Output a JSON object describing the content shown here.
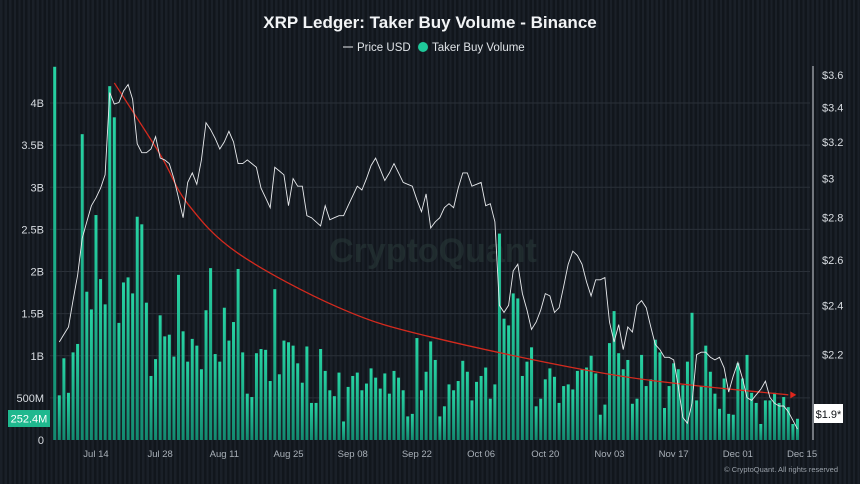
{
  "title": "XRP Ledger: Taker Buy Volume - Binance",
  "legend": [
    {
      "label": "Price USD",
      "marker": "line",
      "color": "#e8eaed"
    },
    {
      "label": "Taker Buy Volume",
      "marker": "dot",
      "color": "#1fc99a"
    }
  ],
  "watermark": "CryptoQuant",
  "copyright": "© CryptoQuant. All rights reserved",
  "colors": {
    "volume": "#1fc99a",
    "price": "#e8eaed",
    "trend": "#d42a1e",
    "background": "#141a21"
  },
  "chart_data": {
    "type": "bar",
    "title": "XRP Ledger: Taker Buy Volume - Binance",
    "grid": true,
    "legend_position": "top-center",
    "x_ticks": [
      "Jul 14",
      "Jul 28",
      "Aug 11",
      "Aug 25",
      "Sep 08",
      "Sep 22",
      "Oct 06",
      "Oct 20",
      "Nov 03",
      "Nov 17",
      "Dec 01",
      "Dec 15"
    ],
    "y_left": {
      "ticks": [
        "0",
        "500M",
        "1B",
        "1.5B",
        "2B",
        "2.5B",
        "3B",
        "3.5B",
        "4B"
      ],
      "tick_values": [
        0,
        0.5,
        1,
        1.5,
        2,
        2.5,
        3,
        3.5,
        4
      ],
      "unit": "billions",
      "range": [
        0,
        4.5
      ]
    },
    "y_right": {
      "ticks": [
        "$2.2",
        "$2.4",
        "$2.6",
        "$2.8",
        "$3",
        "$3.2",
        "$3.4",
        "$3.6"
      ],
      "tick_values": [
        2.2,
        2.4,
        2.6,
        2.8,
        3,
        3.2,
        3.4,
        3.6
      ],
      "scale": "log"
    },
    "last_volume_label": "252.4M",
    "last_price_label": "$1.9*",
    "series": [
      {
        "name": "Taker Buy Volume",
        "type": "bar",
        "unit": "billions",
        "values": [
          4.43,
          0.53,
          0.97,
          0.56,
          1.04,
          1.14,
          3.63,
          1.76,
          1.55,
          2.67,
          1.91,
          1.61,
          4.2,
          3.83,
          1.39,
          1.87,
          1.93,
          1.74,
          2.65,
          2.56,
          1.63,
          0.76,
          0.96,
          1.48,
          1.23,
          1.25,
          0.99,
          1.96,
          1.29,
          0.93,
          1.2,
          1.12,
          0.84,
          1.54,
          2.04,
          1.02,
          0.93,
          1.57,
          1.18,
          1.4,
          2.03,
          1.04,
          0.55,
          0.51,
          1.03,
          1.08,
          1.07,
          0.7,
          1.79,
          0.78,
          1.18,
          1.16,
          1.12,
          0.91,
          0.68,
          1.11,
          0.44,
          0.44,
          1.08,
          0.82,
          0.59,
          0.52,
          0.8,
          0.22,
          0.63,
          0.76,
          0.8,
          0.59,
          0.67,
          0.85,
          0.74,
          0.61,
          0.79,
          0.55,
          0.82,
          0.74,
          0.59,
          0.28,
          0.31,
          1.21,
          0.59,
          0.81,
          1.17,
          0.95,
          0.28,
          0.4,
          0.66,
          0.59,
          0.7,
          0.94,
          0.81,
          0.47,
          0.69,
          0.76,
          0.86,
          0.49,
          0.66,
          2.45,
          1.44,
          1.36,
          1.74,
          1.68,
          0.76,
          0.93,
          1.1,
          0.4,
          0.49,
          0.72,
          0.85,
          0.75,
          0.44,
          0.64,
          0.66,
          0.6,
          0.82,
          0.84,
          0.86,
          1.0,
          0.79,
          0.3,
          0.42,
          1.15,
          1.53,
          1.03,
          0.84,
          0.95,
          0.43,
          0.49,
          1.01,
          0.64,
          0.72,
          1.19,
          1.04,
          0.38,
          0.64,
          0.91,
          0.84,
          0.65,
          0.93,
          1.51,
          0.47,
          0.64,
          1.12,
          0.81,
          0.55,
          0.37,
          0.73,
          0.31,
          0.3,
          0.91,
          0.73,
          1.01,
          0.56,
          0.44,
          0.19,
          0.47,
          0.47,
          0.56,
          0.44,
          0.51,
          0.39,
          0.19,
          0.252
        ]
      },
      {
        "name": "Price USD",
        "type": "line",
        "unit": "USD",
        "values": [
          null,
          2.25,
          2.28,
          2.31,
          2.42,
          2.53,
          2.7,
          2.78,
          2.86,
          2.9,
          2.95,
          3.02,
          3.49,
          3.42,
          3.43,
          3.5,
          3.54,
          3.45,
          3.19,
          3.14,
          3.14,
          3.16,
          3.23,
          3.11,
          3.1,
          3.08,
          3.0,
          2.9,
          2.8,
          2.98,
          3.03,
          2.97,
          3.1,
          3.31,
          3.27,
          3.22,
          3.16,
          3.2,
          3.26,
          3.2,
          3.08,
          3.08,
          3.1,
          3.08,
          3.06,
          2.95,
          2.9,
          2.85,
          3.06,
          3.04,
          3.02,
          2.86,
          3.0,
          2.96,
          2.96,
          2.81,
          2.8,
          2.78,
          2.76,
          2.86,
          2.79,
          2.8,
          2.81,
          2.81,
          2.86,
          2.91,
          2.96,
          2.94,
          3.0,
          3.07,
          3.11,
          3.05,
          2.99,
          3.03,
          3.08,
          3.03,
          2.98,
          2.97,
          2.96,
          2.89,
          2.83,
          2.92,
          2.75,
          2.78,
          2.8,
          2.85,
          2.87,
          2.85,
          2.95,
          3.03,
          3.03,
          2.96,
          2.97,
          2.98,
          2.86,
          2.87,
          2.78,
          2.4,
          2.37,
          2.4,
          2.55,
          2.58,
          2.45,
          2.38,
          2.3,
          2.33,
          2.38,
          2.45,
          2.44,
          2.37,
          2.39,
          2.48,
          2.58,
          2.64,
          2.62,
          2.58,
          2.5,
          2.44,
          2.51,
          2.51,
          2.52,
          2.33,
          2.25,
          2.32,
          2.22,
          2.31,
          2.29,
          2.4,
          2.42,
          2.39,
          2.31,
          2.24,
          2.22,
          2.19,
          2.19,
          2.18,
          2.08,
          1.97,
          1.95,
          2.02,
          2.2,
          2.21,
          2.21,
          2.19,
          2.18,
          2.19,
          2.15,
          2.06,
          2.12,
          2.17,
          2.11,
          2.04,
          2.03,
          2.05,
          2.07,
          2.1,
          2.04,
          2.02,
          2.01,
          2.01,
          1.99,
          1.96,
          1.93
        ]
      }
    ],
    "trend_line": {
      "color": "#d42a1e",
      "points": [
        {
          "x": "Jul 18",
          "y": 3.55
        },
        {
          "x": "Jul 28",
          "y": 3.13
        },
        {
          "x": "Aug 03",
          "y": 2.87
        },
        {
          "x": "Aug 14",
          "y": 2.63
        },
        {
          "x": "Sep 05",
          "y": 2.39
        },
        {
          "x": "Sep 25",
          "y": 2.27
        },
        {
          "x": "Nov 05",
          "y": 2.12
        },
        {
          "x": "Dec 12",
          "y": 2.05
        }
      ]
    }
  }
}
